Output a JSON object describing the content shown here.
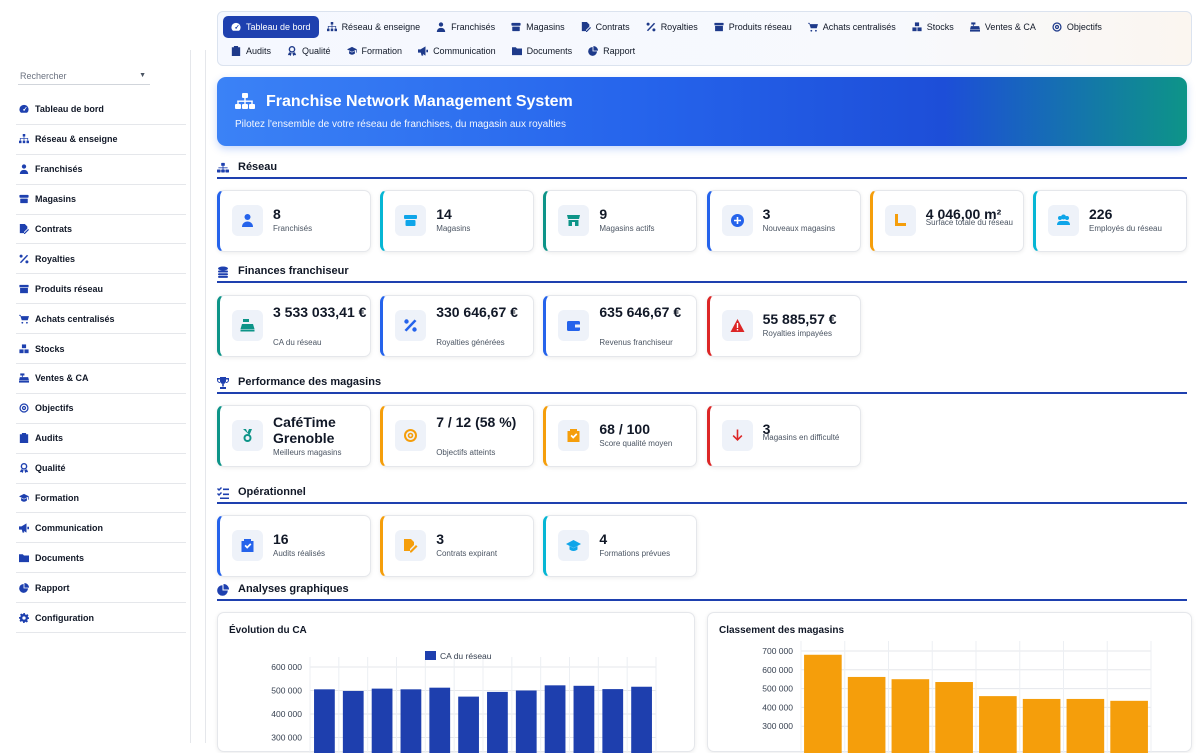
{
  "sidebar": {
    "search_placeholder": "Rechercher",
    "items": [
      {
        "label": "Tableau de bord",
        "icon": "gauge-icon"
      },
      {
        "label": "Réseau & enseigne",
        "icon": "sitemap-icon"
      },
      {
        "label": "Franchisés",
        "icon": "user-tie-icon"
      },
      {
        "label": "Magasins",
        "icon": "store-icon"
      },
      {
        "label": "Contrats",
        "icon": "file-signature-icon"
      },
      {
        "label": "Royalties",
        "icon": "percent-icon"
      },
      {
        "label": "Produits réseau",
        "icon": "box-icon"
      },
      {
        "label": "Achats centralisés",
        "icon": "cart-icon"
      },
      {
        "label": "Stocks",
        "icon": "cubes-icon"
      },
      {
        "label": "Ventes & CA",
        "icon": "cash-register-icon"
      },
      {
        "label": "Objectifs",
        "icon": "bullseye-icon"
      },
      {
        "label": "Audits",
        "icon": "clipboard-check-icon"
      },
      {
        "label": "Qualité",
        "icon": "award-icon"
      },
      {
        "label": "Formation",
        "icon": "graduation-cap-icon"
      },
      {
        "label": "Communication",
        "icon": "megaphone-icon"
      },
      {
        "label": "Documents",
        "icon": "folder-icon"
      },
      {
        "label": "Rapport",
        "icon": "pie-chart-icon"
      },
      {
        "label": "Configuration",
        "icon": "gear-icon"
      }
    ]
  },
  "tabs": {
    "row1": [
      "Tableau de bord",
      "Réseau & enseigne",
      "Franchisés",
      "Magasins",
      "Contrats",
      "Royalties",
      "Produits réseau",
      "Achats centralisés",
      "Stocks",
      "Ventes & CA",
      "Objectifs"
    ],
    "row2": [
      "Audits",
      "Qualité",
      "Formation",
      "Communication",
      "Documents",
      "Rapport"
    ],
    "active": "Tableau de bord"
  },
  "hero": {
    "title": "Franchise Network Management System",
    "subtitle": "Pilotez l'ensemble de votre réseau de franchises, du magasin aux royalties"
  },
  "sections": {
    "reseau": "Réseau",
    "finances": "Finances franchiseur",
    "performance": "Performance des magasins",
    "operationnel": "Opérationnel",
    "analyses": "Analyses graphiques"
  },
  "reseau": [
    {
      "value": "8",
      "label": "Franchisés"
    },
    {
      "value": "14",
      "label": "Magasins"
    },
    {
      "value": "9",
      "label": "Magasins actifs"
    },
    {
      "value": "3",
      "label": "Nouveaux magasins"
    },
    {
      "value": "4 046,00 m²",
      "label": "Surface totale du réseau"
    },
    {
      "value": "226",
      "label": "Employés du réseau"
    }
  ],
  "finances": [
    {
      "value": "3 533 033,41 €",
      "label": "CA du réseau"
    },
    {
      "value": "330 646,67 €",
      "label": "Royalties générées"
    },
    {
      "value": "635 646,67 €",
      "label": "Revenus franchiseur"
    },
    {
      "value": "55 885,57 €",
      "label": "Royalties impayées"
    }
  ],
  "performance": [
    {
      "value": "CaféTime Grenoble",
      "label": "Meilleurs magasins"
    },
    {
      "value": "7 / 12 (58 %)",
      "label": "Objectifs atteints"
    },
    {
      "value": "68 / 100",
      "label": "Score qualité moyen"
    },
    {
      "value": "3",
      "label": "Magasins en difficulté"
    }
  ],
  "operationnel": [
    {
      "value": "16",
      "label": "Audits réalisés"
    },
    {
      "value": "3",
      "label": "Contrats expirant"
    },
    {
      "value": "4",
      "label": "Formations prévues"
    }
  ],
  "colors": {
    "primary": "#1e40af",
    "bar_blue": "#1e3fae",
    "bar_orange": "#f59e0b"
  },
  "chart_data": [
    {
      "type": "bar",
      "title": "Évolution du CA",
      "series": [
        {
          "name": "CA du réseau",
          "values": [
            505000,
            498000,
            508000,
            505000,
            512000,
            474000,
            494000,
            500000,
            522000,
            520000,
            506000,
            516000
          ]
        }
      ],
      "yticks": [
        "600 000",
        "500 000",
        "400 000",
        "300 000"
      ],
      "ylim": [
        300000,
        600000
      ],
      "legend": "top"
    },
    {
      "type": "bar",
      "title": "Classement des magasins",
      "series": [
        {
          "values": [
            680000,
            562000,
            550000,
            535000,
            460000,
            445000,
            445000,
            435000
          ]
        }
      ],
      "yticks": [
        "700 000",
        "600 000",
        "500 000",
        "400 000",
        "300 000"
      ],
      "ylim": [
        300000,
        700000
      ]
    }
  ]
}
